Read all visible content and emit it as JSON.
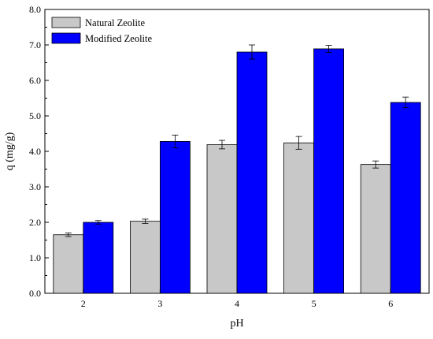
{
  "chart_data": {
    "type": "bar",
    "categories": [
      "2",
      "3",
      "4",
      "5",
      "6"
    ],
    "series": [
      {
        "name": "Natural Zeolite",
        "color": "#c8c8c8",
        "values": [
          1.65,
          2.03,
          4.19,
          4.24,
          3.63
        ],
        "errors": [
          0.05,
          0.06,
          0.12,
          0.18,
          0.1
        ]
      },
      {
        "name": "Modified Zeolite",
        "color": "#0000ff",
        "values": [
          2.0,
          4.28,
          6.8,
          6.89,
          5.38
        ],
        "errors": [
          0.05,
          0.18,
          0.2,
          0.1,
          0.15
        ]
      }
    ],
    "xlabel": "pH",
    "ylabel": "q (mg/g)",
    "ylim": [
      0,
      8
    ],
    "yticks": [
      "0.0",
      "1.0",
      "2.0",
      "3.0",
      "4.0",
      "5.0",
      "6.0",
      "7.0",
      "8.0"
    ],
    "grid": false,
    "legend_position": "top-left",
    "frame": "box"
  }
}
